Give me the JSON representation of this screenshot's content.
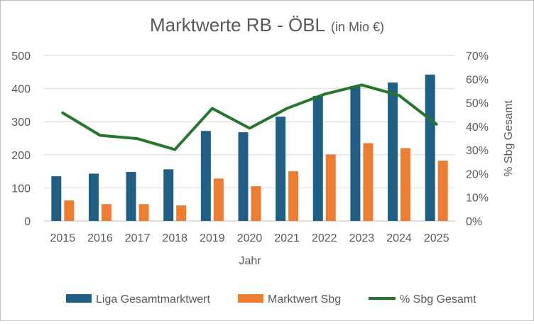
{
  "chart_data": {
    "type": "bar",
    "title": "Marktwerte RB - ÖBL",
    "subtitle": "(in Mio €)",
    "xlabel": "Jahr",
    "ylabel": "",
    "y2label": "% Sbg Gesamt",
    "ylim": [
      0,
      500
    ],
    "y2lim": [
      0,
      70
    ],
    "yticks": [
      "0",
      "100",
      "200",
      "300",
      "400",
      "500"
    ],
    "y2ticks": [
      "0%",
      "10%",
      "20%",
      "30%",
      "40%",
      "50%",
      "60%",
      "70%"
    ],
    "grid": "horizontal",
    "legend_position": "bottom",
    "categories": [
      "2015",
      "2016",
      "2017",
      "2018",
      "2019",
      "2020",
      "2021",
      "2022",
      "2023",
      "2024",
      "2025"
    ],
    "series": [
      {
        "name": "Liga Gesamtmarktwert",
        "type": "bar",
        "axis": "left",
        "color": "#1f5f86",
        "values": [
          135,
          143,
          148,
          156,
          272,
          268,
          315,
          378,
          408,
          418,
          442
        ]
      },
      {
        "name": "Marktwert Sbg",
        "type": "bar",
        "axis": "left",
        "color": "#ee7d31",
        "values": [
          62,
          51,
          51,
          47,
          128,
          105,
          150,
          201,
          235,
          220,
          182
        ]
      },
      {
        "name": "% Sbg Gesamt",
        "type": "line",
        "axis": "right",
        "color": "#27762d",
        "values": [
          45.7,
          36.2,
          34.8,
          30.2,
          47.6,
          39.2,
          47.6,
          53.6,
          57.5,
          53.1,
          40.9
        ]
      }
    ]
  }
}
